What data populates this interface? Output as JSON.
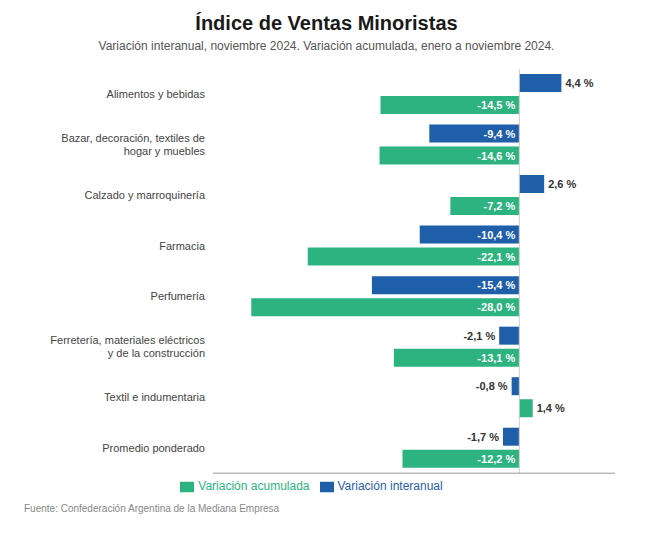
{
  "chart_data": {
    "type": "bar",
    "orientation": "horizontal",
    "title": "Índice de Ventas Minoristas",
    "subtitle": "Variación interanual, noviembre 2024. Variación acumulada, enero a noviembre 2024.",
    "annotations": [
      "Fuente: Confederación Argentina de la Mediana Empresa"
    ],
    "categories": [
      "Alimentos y bebidas",
      "Bazar, decoración, textiles de\nhogar y muebles",
      "Calzado y marroquinería",
      "Farmacia",
      "Perfumería",
      "Ferretería, materiales eléctricos\ny de la construcción",
      "Textil e indumentaria",
      "Promedio ponderado"
    ],
    "series": [
      {
        "name": "Variación interanual",
        "color": "#1f5ea8",
        "values": [
          4.4,
          -9.4,
          2.6,
          -10.4,
          -15.4,
          -2.1,
          -0.8,
          -1.7
        ],
        "value_labels": [
          "4,4 %",
          "-9,4 %",
          "2,6 %",
          "-10,4 %",
          "-15,4 %",
          "-2,1 %",
          "-0,8 %",
          "-1,7 %"
        ]
      },
      {
        "name": "Variación acumulada",
        "color": "#2db380",
        "values": [
          -14.5,
          -14.6,
          -7.2,
          -22.1,
          -28.0,
          -13.1,
          1.4,
          -12.2
        ],
        "value_labels": [
          "-14,5 %",
          "-14,6 %",
          "-7,2 %",
          "-22,1 %",
          "-28,0 %",
          "-13,1 %",
          "1,4 %",
          "-12,2 %"
        ]
      }
    ],
    "xlim": [
      -32,
      10
    ],
    "grid": false,
    "legend": "bottom",
    "data_labels": true,
    "tick_labels": "y"
  }
}
